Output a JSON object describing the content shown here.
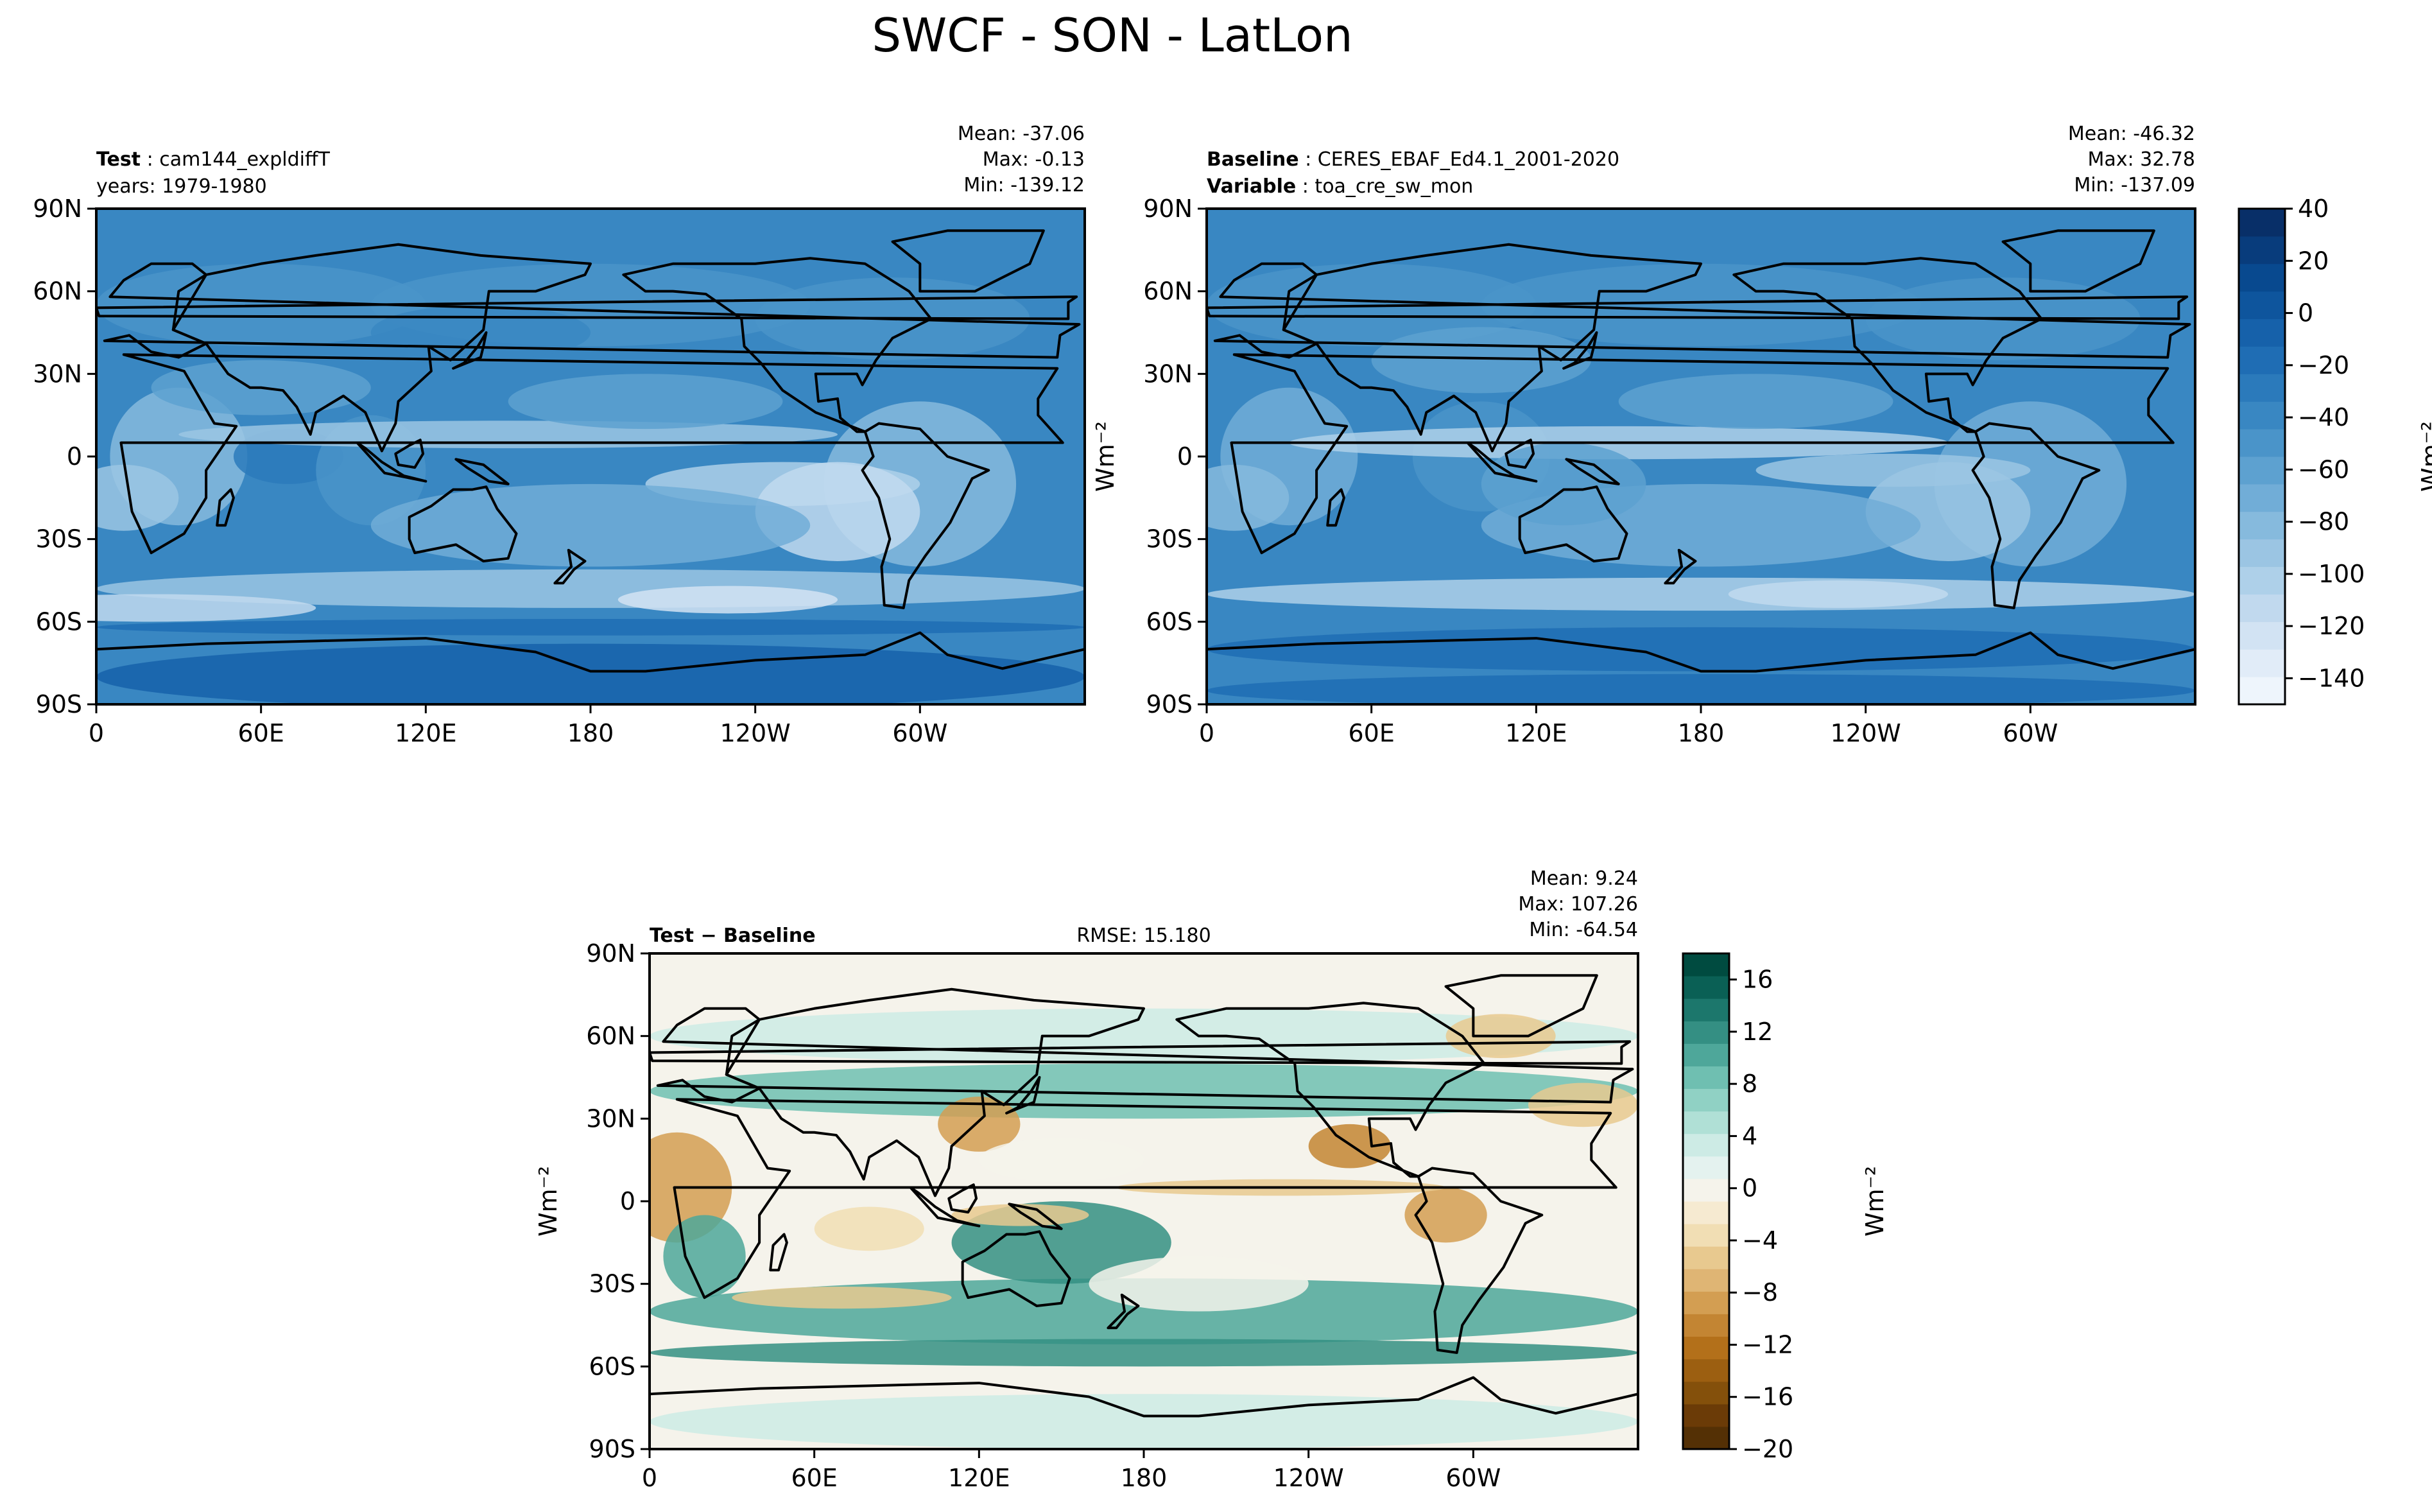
{
  "figure": {
    "title": "SWCF - SON - LatLon"
  },
  "chart_data": [
    {
      "type": "heatmap",
      "panel": "test",
      "header_left": [
        {
          "bold": "Test",
          "text": "cam144_expldiffT"
        },
        {
          "bold": "",
          "text": "years: 1979-1980"
        }
      ],
      "stats": [
        "Mean: -37.06",
        "Max: -0.13",
        "Min: -139.12"
      ],
      "xlabel": "",
      "ylabel": "",
      "xticks": [
        "0",
        "60E",
        "120E",
        "180",
        "120W",
        "60W"
      ],
      "yticks": [
        "90N",
        "60N",
        "30N",
        "0",
        "30S",
        "60S",
        "90S"
      ],
      "xlim": [
        0,
        360
      ],
      "ylim": [
        -90,
        90
      ],
      "stats_values": {
        "mean": -37.06,
        "max": -0.13,
        "min": -139.12
      }
    },
    {
      "type": "heatmap",
      "panel": "baseline",
      "header_left": [
        {
          "bold": "Baseline",
          "text": "CERES_EBAF_Ed4.1_2001-2020"
        },
        {
          "bold": "Variable",
          "text": "toa_cre_sw_mon"
        }
      ],
      "stats": [
        "Mean: -46.32",
        "Max: 32.78",
        "Min: -137.09"
      ],
      "xlabel": "",
      "ylabel": "Wm⁻²",
      "xticks": [
        "0",
        "60E",
        "120E",
        "180",
        "120W",
        "60W"
      ],
      "yticks": [
        "90N",
        "60N",
        "30N",
        "0",
        "30S",
        "60S",
        "90S"
      ],
      "xlim": [
        0,
        360
      ],
      "ylim": [
        -90,
        90
      ],
      "stats_values": {
        "mean": -46.32,
        "max": 32.78,
        "min": -137.09
      }
    },
    {
      "type": "heatmap",
      "panel": "diff",
      "header_left": [
        {
          "bold": "Test − Baseline",
          "text": ""
        }
      ],
      "rmse": "RMSE: 15.180",
      "stats": [
        "Mean:  9.24",
        "Max: 107.26",
        "Min: -64.54"
      ],
      "xlabel": "",
      "ylabel": "Wm⁻²",
      "xticks": [
        "0",
        "60E",
        "120E",
        "180",
        "120W",
        "60W"
      ],
      "yticks": [
        "90N",
        "60N",
        "30N",
        "0",
        "30S",
        "60S",
        "90S"
      ],
      "xlim": [
        0,
        360
      ],
      "ylim": [
        -90,
        90
      ],
      "stats_values": {
        "mean": 9.24,
        "max": 107.26,
        "min": -64.54,
        "rmse": 15.18
      }
    }
  ],
  "colorbars": {
    "blues": {
      "label": "Wm⁻²",
      "range": [
        -150,
        40
      ],
      "ticks": [
        "40",
        "20",
        "0",
        "−20",
        "−40",
        "−60",
        "−80",
        "−100",
        "−120",
        "−140"
      ],
      "tick_values": [
        40,
        20,
        0,
        -20,
        -40,
        -60,
        -80,
        -100,
        -120,
        -140
      ],
      "colors": [
        "#eef5fc",
        "#e1ecf8",
        "#d2e3f3",
        "#c1d9ee",
        "#aed0e9",
        "#9bc5e3",
        "#86badd",
        "#71add7",
        "#5da1d0",
        "#4a94c9",
        "#3987c2",
        "#2b7abb",
        "#1f6db4",
        "#1661aa",
        "#0e559d",
        "#08498f",
        "#083c7c",
        "#082f68"
      ]
    },
    "diverging": {
      "label": "Wm⁻²",
      "range": [
        -20,
        18
      ],
      "ticks": [
        "16",
        "12",
        "8",
        "4",
        "0",
        "−4",
        "−8",
        "−12",
        "−16",
        "−20"
      ],
      "tick_values": [
        16,
        12,
        8,
        4,
        0,
        -4,
        -8,
        -12,
        -16,
        -20
      ],
      "colors": [
        "#543005",
        "#6b3b07",
        "#84500b",
        "#9c5f11",
        "#b3701a",
        "#c38533",
        "#d39e52",
        "#dfb574",
        "#e8c98f",
        "#f1deb4",
        "#f6ead1",
        "#f5f3eb",
        "#e4f2ef",
        "#cdebe5",
        "#b0e0d6",
        "#90d1c4",
        "#6fbfb1",
        "#4ea79a",
        "#348f83",
        "#1c776c",
        "#0a6055",
        "#004b40"
      ]
    }
  }
}
